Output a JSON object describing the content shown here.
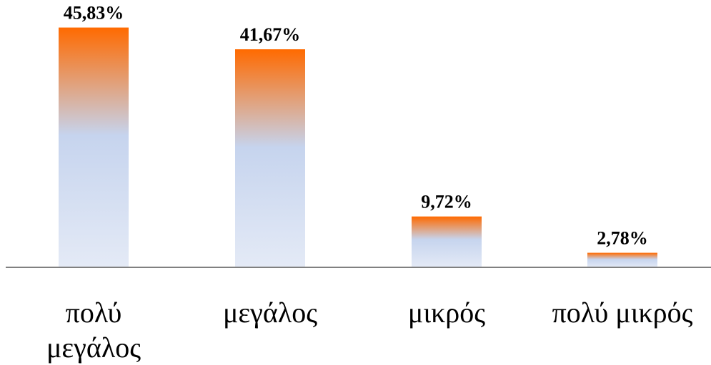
{
  "chart_data": {
    "type": "bar",
    "categories": [
      [
        "πολύ",
        "μεγάλος"
      ],
      [
        "μεγάλος"
      ],
      [
        "μικρός"
      ],
      [
        "πολύ μικρός"
      ]
    ],
    "values": [
      45.83,
      41.67,
      9.72,
      2.78
    ],
    "data_labels": [
      "45,83%",
      "41,67%",
      "9,72%",
      "2,78%"
    ],
    "ylim": [
      0,
      50
    ],
    "grid": false,
    "legend": "none",
    "colors": {
      "bar_top": "#ff6a00",
      "bar_mid": "#c6d4ee",
      "bar_bottom": "#e4eaf6",
      "axis": "#808080"
    }
  }
}
